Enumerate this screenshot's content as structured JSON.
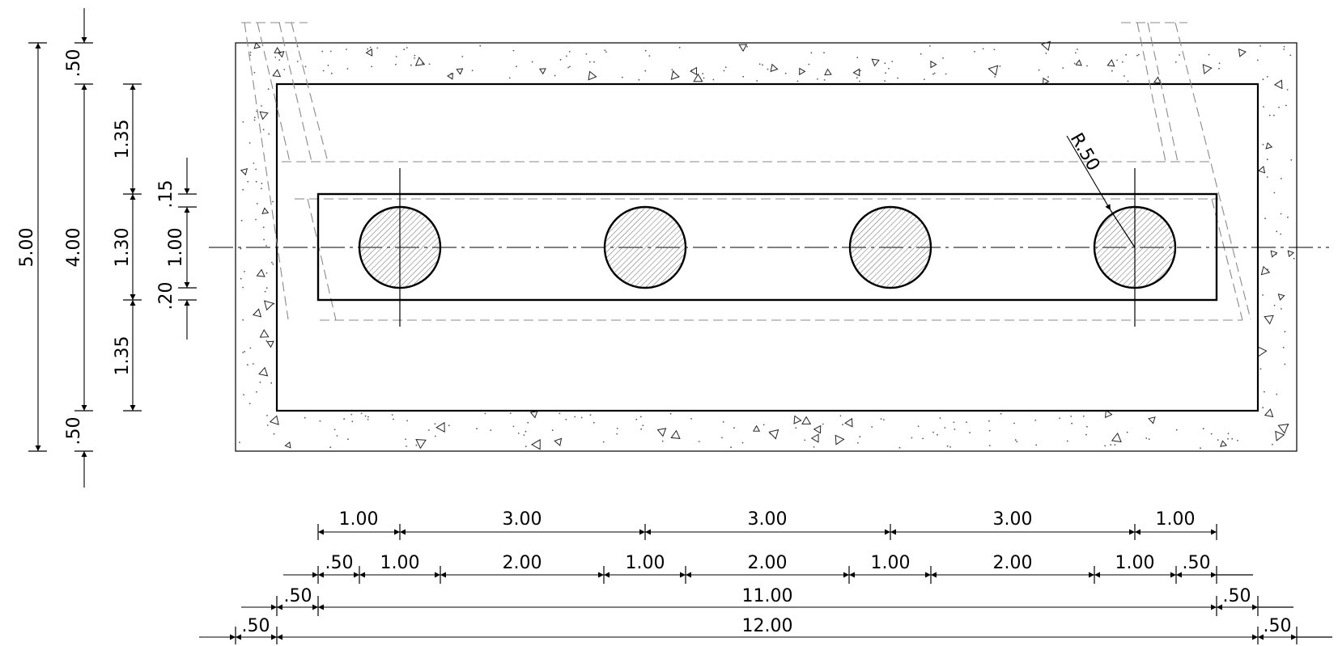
{
  "drawing": {
    "annotations": {
      "radius_label": "R.50"
    },
    "vertical_dims": {
      "overall": [
        "5.00"
      ],
      "mid": [
        ".50",
        "4.00",
        ".50"
      ],
      "inner": [
        "1.35",
        "1.30",
        "1.35"
      ],
      "detail": [
        ".15",
        "1.00",
        ".20"
      ]
    },
    "horizontal_dims": {
      "row1": [
        "1.00",
        "3.00",
        "3.00",
        "3.00",
        "1.00"
      ],
      "row2": [
        ".50",
        "1.00",
        "2.00",
        "1.00",
        "2.00",
        "1.00",
        "2.00",
        "1.00",
        ".50"
      ],
      "row3": [
        ".50",
        "11.00",
        ".50"
      ],
      "row4": [
        ".50",
        "12.00",
        ".50"
      ]
    }
  }
}
